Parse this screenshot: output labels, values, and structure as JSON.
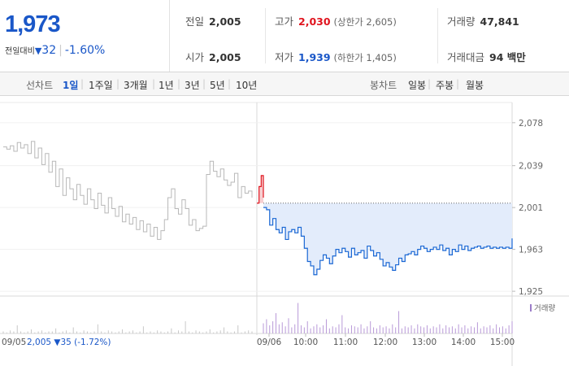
{
  "quote": {
    "price": "1,973",
    "change_label": "전일대비",
    "change_icon": "triangle-down-icon",
    "change_value": "32",
    "change_pct": "-1.60%",
    "prev_close_label": "전일",
    "prev_close": "2,005",
    "open_label": "시가",
    "open": "2,005",
    "high_label": "고가",
    "high": "2,030",
    "upper_limit": "(상한가 2,605)",
    "low_label": "저가",
    "low": "1,939",
    "lower_limit": "(하한가 1,405)",
    "volume_label": "거래량",
    "volume": "47,841",
    "amount_label": "거래대금",
    "amount": "94 백만"
  },
  "tabs": {
    "line_label": "선차트",
    "line": [
      "1일",
      "1주일",
      "3개월",
      "1년",
      "3년",
      "5년",
      "10년"
    ],
    "line_active": 0,
    "candle_label": "봉차트",
    "candle": [
      "일봉",
      "주봉",
      "월봉"
    ]
  },
  "chart_data": {
    "type": "line",
    "ylim": [
      1914,
      2086
    ],
    "yticks": [
      2078,
      2039,
      2001,
      1963,
      1925
    ],
    "ytick_labels": [
      "2,078",
      "2,039",
      "2,001",
      "1,963",
      "1,925"
    ],
    "reference_line": 2005,
    "prev_day": {
      "date": "09/05",
      "summary": "2,005 ▼35 (-1.72%)",
      "values": [
        2056,
        2054,
        2057,
        2052,
        2060,
        2055,
        2058,
        2050,
        2061,
        2046,
        2055,
        2040,
        2050,
        2033,
        2043,
        2020,
        2036,
        2012,
        2028,
        2018,
        2008,
        2022,
        2012,
        2004,
        2018,
        2008,
        2000,
        2014,
        2003,
        1996,
        2010,
        2000,
        1993,
        2002,
        1988,
        1995,
        1986,
        1992,
        1981,
        1989,
        1979,
        1986,
        1975,
        1983,
        1972,
        1980,
        1990,
        2010,
        2018,
        2000,
        1995,
        2008,
        2000,
        1985,
        1990,
        1980,
        1982,
        1984,
        2031,
        2043,
        2034,
        2029,
        2036,
        2026,
        2021,
        2024,
        2032,
        2010,
        2020,
        2014,
        2016,
        2010
      ]
    },
    "today": {
      "date": "09/06",
      "times": [
        "10:00",
        "11:00",
        "12:00",
        "13:00",
        "14:00",
        "15:00"
      ],
      "up_segment": [
        2005,
        2020,
        2030,
        2010
      ],
      "values": [
        2001,
        1999,
        1985,
        1991,
        1981,
        1978,
        1983,
        1972,
        1979,
        1981,
        1978,
        1983,
        1975,
        1964,
        1952,
        1948,
        1940,
        1945,
        1953,
        1958,
        1955,
        1950,
        1957,
        1963,
        1960,
        1964,
        1961,
        1956,
        1964,
        1958,
        1960,
        1962,
        1955,
        1966,
        1962,
        1957,
        1960,
        1954,
        1948,
        1951,
        1947,
        1944,
        1949,
        1955,
        1952,
        1958,
        1959,
        1961,
        1958,
        1963,
        1966,
        1964,
        1961,
        1963,
        1965,
        1963,
        1967,
        1962,
        1964,
        1958,
        1963,
        1961,
        1967,
        1963,
        1966,
        1962,
        1964,
        1965,
        1966,
        1964,
        1965,
        1966,
        1964,
        1965,
        1964,
        1965,
        1964,
        1965,
        1964,
        1973
      ]
    },
    "volume_label": "거래량",
    "volume_prev": [
      2,
      1,
      3,
      2,
      8,
      2,
      1,
      2,
      4,
      1,
      2,
      3,
      1,
      2,
      2,
      5,
      1,
      2,
      3,
      1,
      6,
      2,
      1,
      3,
      2,
      1,
      2,
      9,
      2,
      1,
      3,
      2,
      1,
      2,
      4,
      1,
      2,
      3,
      1,
      2,
      7,
      1,
      2,
      1,
      3,
      2,
      1,
      2,
      5,
      1,
      3,
      2,
      12,
      2,
      1,
      3,
      2,
      1,
      2,
      4,
      1,
      2,
      3,
      6,
      2,
      1,
      2,
      8,
      1,
      2,
      3,
      2
    ],
    "volume_today": [
      10,
      14,
      8,
      12,
      20,
      9,
      11,
      7,
      15,
      6,
      9,
      30,
      8,
      6,
      12,
      5,
      7,
      9,
      6,
      8,
      14,
      5,
      7,
      6,
      9,
      18,
      6,
      5,
      8,
      7,
      6,
      9,
      5,
      7,
      12,
      6,
      5,
      8,
      6,
      7,
      5,
      9,
      6,
      22,
      5,
      7,
      6,
      8,
      5,
      9,
      7,
      6,
      8,
      5,
      7,
      6,
      9,
      5,
      8,
      6,
      7,
      5,
      9,
      6,
      8,
      5,
      7,
      6,
      11,
      5,
      7,
      6,
      8,
      5,
      9,
      6,
      7,
      5,
      8,
      12
    ]
  }
}
